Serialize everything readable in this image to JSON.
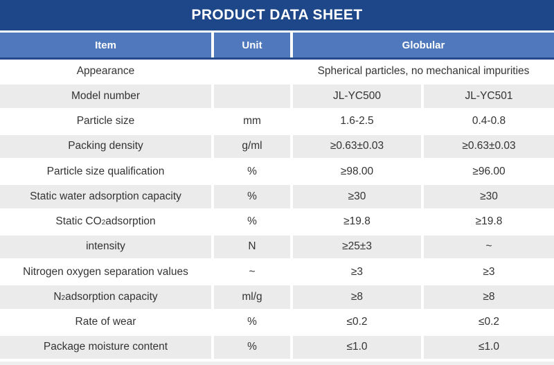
{
  "title_bar": {
    "title": "PRODUCT DATA SHEET"
  },
  "colors": {
    "title_bar_bg": "#1d4788",
    "header_bg": "#5079bd",
    "header_underline": "#24498c",
    "row_alt_bg": "#ebebeb",
    "text": "#333333",
    "cutoff_bg": "#efefef"
  },
  "table": {
    "headers": {
      "item": "Item",
      "unit": "Unit",
      "globular": "Globular"
    },
    "model_columns": [
      "JL-YC500",
      "JL-YC501"
    ],
    "rows": [
      {
        "item": [
          {
            "text": "Appearance"
          }
        ],
        "unit": "",
        "values": [
          "Spherical particles, no mechanical impurities"
        ]
      },
      {
        "item": [
          {
            "text": "Model number"
          }
        ],
        "unit": "",
        "values": [
          "JL-YC500",
          "JL-YC501"
        ]
      },
      {
        "item": [
          {
            "text": "Particle size"
          }
        ],
        "unit": "mm",
        "values": [
          "1.6-2.5",
          "0.4-0.8"
        ]
      },
      {
        "item": [
          {
            "text": "Packing density"
          }
        ],
        "unit": "g/ml",
        "values": [
          "≥0.63±0.03",
          "≥0.63±0.03"
        ]
      },
      {
        "item": [
          {
            "text": "Particle size qualification"
          }
        ],
        "unit": "%",
        "values": [
          "≥98.00",
          "≥96.00"
        ]
      },
      {
        "item": [
          {
            "text": "Static water adsorption capacity"
          }
        ],
        "unit": "%",
        "values": [
          "≥30",
          "≥30"
        ]
      },
      {
        "item": [
          {
            "text": "Static CO"
          },
          {
            "text": "2",
            "sub": true
          },
          {
            "text": " adsorption"
          }
        ],
        "unit": "%",
        "values": [
          "≥19.8",
          "≥19.8"
        ]
      },
      {
        "item": [
          {
            "text": "intensity"
          }
        ],
        "unit": "N",
        "values": [
          "≥25±3",
          "~"
        ]
      },
      {
        "item": [
          {
            "text": "Nitrogen oxygen separation values"
          }
        ],
        "unit": "~",
        "values": [
          "≥3",
          "≥3"
        ]
      },
      {
        "item": [
          {
            "text": "N"
          },
          {
            "text": "2",
            "sub": true
          },
          {
            "text": " adsorption capacity"
          }
        ],
        "unit": "ml/g",
        "values": [
          "≥8",
          "≥8"
        ]
      },
      {
        "item": [
          {
            "text": "Rate of wear"
          }
        ],
        "unit": "%",
        "values": [
          "≤0.2",
          "≤0.2"
        ]
      },
      {
        "item": [
          {
            "text": "Package moisture content"
          }
        ],
        "unit": "%",
        "values": [
          "≤1.0",
          "≤1.0"
        ]
      }
    ]
  }
}
